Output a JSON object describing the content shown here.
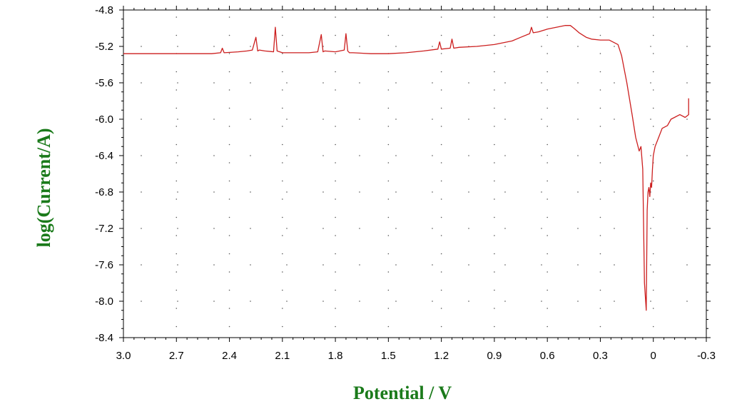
{
  "chart_data": {
    "type": "line",
    "xlabel": "Potential / V",
    "ylabel": "log(Current/A)",
    "xlim": [
      3.0,
      -0.3
    ],
    "ylim": [
      -8.4,
      -4.8
    ],
    "x_reversed": true,
    "x_ticks": [
      "3.0",
      "2.7",
      "2.4",
      "2.1",
      "1.8",
      "1.5",
      "1.2",
      "0.9",
      "0.6",
      "0.3",
      "0",
      "-0.3"
    ],
    "x_tick_values": [
      3.0,
      2.7,
      2.4,
      2.1,
      1.8,
      1.5,
      1.2,
      0.9,
      0.6,
      0.3,
      0.0,
      -0.3
    ],
    "y_ticks": [
      "-4.8",
      "-5.2",
      "-5.6",
      "-6.0",
      "-6.4",
      "-6.8",
      "-7.2",
      "-7.6",
      "-8.0",
      "-8.4"
    ],
    "y_tick_values": [
      -4.8,
      -5.2,
      -5.6,
      -6.0,
      -6.4,
      -6.8,
      -7.2,
      -7.6,
      -8.0,
      -8.4
    ],
    "grid": "dotted",
    "line_color": "#cc1f1f",
    "label_color": "#1a7a1a",
    "series": [
      {
        "x": [
          3.0,
          2.9,
          2.8,
          2.7,
          2.6,
          2.5,
          2.45,
          2.44,
          2.43,
          2.35,
          2.3,
          2.27,
          2.25,
          2.24,
          2.23,
          2.2,
          2.15,
          2.14,
          2.13,
          2.1,
          2.0,
          1.95,
          1.9,
          1.88,
          1.87,
          1.86,
          1.8,
          1.75,
          1.74,
          1.73,
          1.72,
          1.7,
          1.6,
          1.55,
          1.5,
          1.4,
          1.3,
          1.22,
          1.21,
          1.2,
          1.15,
          1.14,
          1.13,
          1.1,
          1.0,
          0.9,
          0.8,
          0.75,
          0.7,
          0.69,
          0.68,
          0.65,
          0.6,
          0.55,
          0.5,
          0.47,
          0.45,
          0.42,
          0.38,
          0.35,
          0.3,
          0.25,
          0.2,
          0.18,
          0.15,
          0.12,
          0.1,
          0.08,
          0.07,
          0.06,
          0.05,
          0.04,
          0.035,
          0.03,
          0.025,
          0.02,
          0.015,
          0.01,
          0.005,
          0.0,
          -0.01,
          -0.03,
          -0.05,
          -0.08,
          -0.1,
          -0.12,
          -0.15,
          -0.18,
          -0.2,
          -0.2
        ],
        "y": [
          -5.28,
          -5.28,
          -5.28,
          -5.28,
          -5.28,
          -5.28,
          -5.27,
          -5.22,
          -5.27,
          -5.26,
          -5.25,
          -5.24,
          -5.1,
          -5.25,
          -5.24,
          -5.25,
          -5.26,
          -4.99,
          -5.25,
          -5.27,
          -5.27,
          -5.27,
          -5.26,
          -5.07,
          -5.26,
          -5.25,
          -5.26,
          -5.24,
          -5.06,
          -5.25,
          -5.27,
          -5.27,
          -5.28,
          -5.28,
          -5.28,
          -5.27,
          -5.25,
          -5.23,
          -5.15,
          -5.23,
          -5.22,
          -5.12,
          -5.22,
          -5.21,
          -5.2,
          -5.18,
          -5.14,
          -5.1,
          -5.06,
          -4.99,
          -5.05,
          -5.04,
          -5.01,
          -4.99,
          -4.97,
          -4.97,
          -5.0,
          -5.05,
          -5.1,
          -5.12,
          -5.13,
          -5.13,
          -5.18,
          -5.3,
          -5.6,
          -5.95,
          -6.2,
          -6.35,
          -6.3,
          -6.55,
          -7.8,
          -8.1,
          -7.0,
          -6.8,
          -6.75,
          -6.85,
          -6.7,
          -6.75,
          -6.55,
          -6.4,
          -6.3,
          -6.2,
          -6.1,
          -6.07,
          -6.0,
          -5.98,
          -5.95,
          -5.98,
          -5.95,
          -5.77
        ]
      }
    ]
  }
}
